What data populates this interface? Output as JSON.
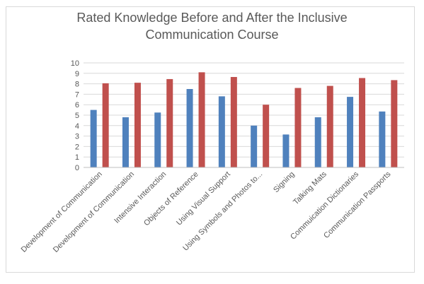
{
  "chart_data": {
    "type": "bar",
    "title_lines": [
      "Rated Knowledge Before and After the Inclusive",
      "Communication Course"
    ],
    "categories": [
      "Development of Communication",
      "Development of Communication",
      "Intensive Interaction",
      "Objects of Reference",
      "Using Visual Support",
      "Using Symbols and Photos to...",
      "Signing",
      "Talking Mats",
      "Commuication Dictionaries",
      "Communication Passports"
    ],
    "series": [
      {
        "values": [
          5.5,
          4.8,
          5.25,
          7.5,
          6.8,
          4.0,
          3.15,
          4.8,
          6.75,
          5.35
        ],
        "color": "#4f81bd"
      },
      {
        "values": [
          8.05,
          8.1,
          8.45,
          9.1,
          8.65,
          6.0,
          7.6,
          7.8,
          8.55,
          8.35
        ],
        "color": "#c0504d"
      }
    ],
    "ylim": [
      0,
      10
    ],
    "yticks": [
      "0",
      "1",
      "2",
      "3",
      "4",
      "5",
      "6",
      "7",
      "8",
      "9",
      "10"
    ],
    "grid": true,
    "legend": "none"
  }
}
